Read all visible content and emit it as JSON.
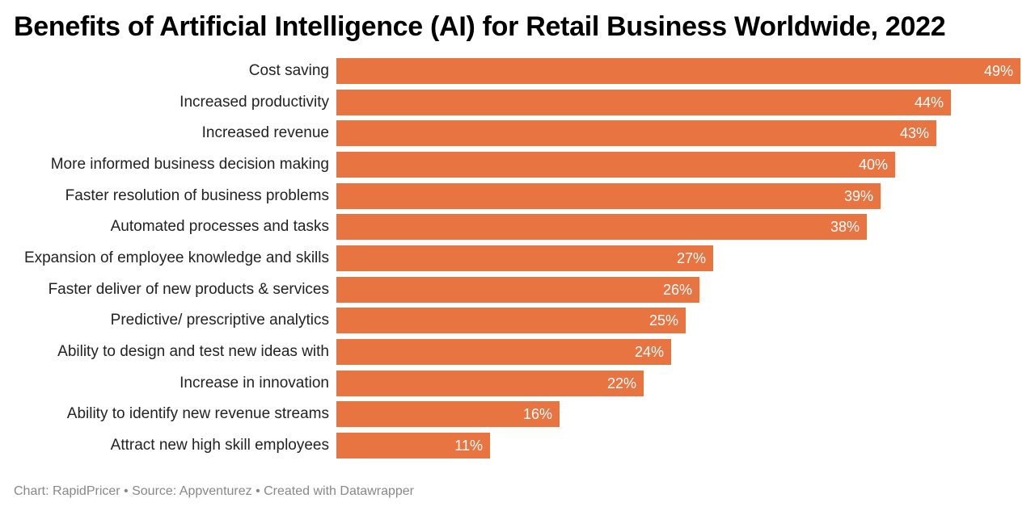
{
  "chart_data": {
    "type": "bar",
    "orientation": "horizontal",
    "title": "Benefits of Artificial Intelligence (AI) for Retail Business Worldwide, 2022",
    "categories": [
      "Cost saving",
      "Increased productivity",
      "Increased revenue",
      "More informed business decision making",
      "Faster resolution of business problems",
      "Automated processes and tasks",
      "Expansion of employee knowledge and skills",
      "Faster deliver of new products & services",
      "Predictive/ prescriptive analytics",
      "Ability to design and test new ideas with",
      "Increase in innovation",
      "Ability to identify new revenue streams",
      "Attract new high skill employees"
    ],
    "values": [
      49,
      44,
      43,
      40,
      39,
      38,
      27,
      26,
      25,
      24,
      22,
      16,
      11
    ],
    "value_labels": [
      "49%",
      "44%",
      "43%",
      "40%",
      "39%",
      "38%",
      "27%",
      "26%",
      "25%",
      "24%",
      "22%",
      "16%",
      "11%"
    ],
    "unit": "%",
    "xlim": [
      0,
      49
    ],
    "grid": false,
    "legend": "none",
    "bar_color": "#E87442"
  },
  "footer": {
    "text": "Chart: RapidPricer • Source: Appventurez • Created with Datawrapper"
  }
}
